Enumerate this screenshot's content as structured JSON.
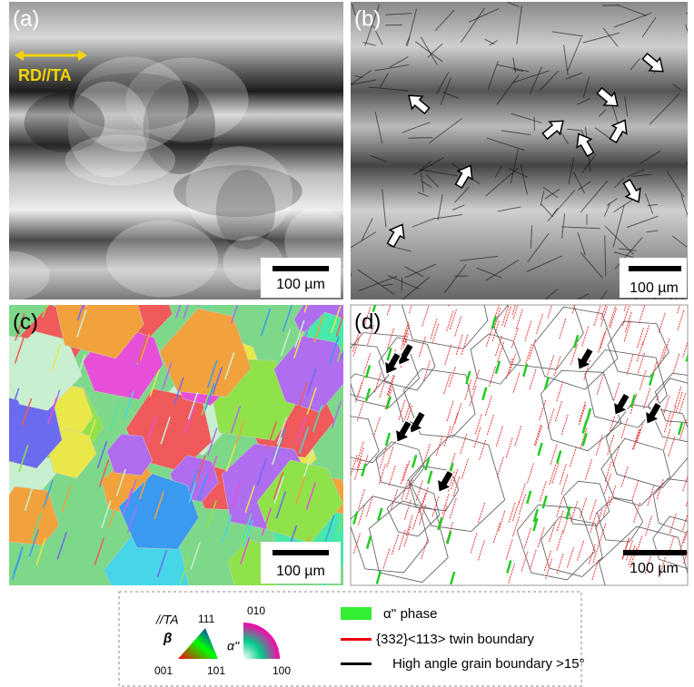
{
  "panels": [
    {
      "label": "(a)",
      "scale_bar": "100 µm",
      "annotation": "RD//TA"
    },
    {
      "label": "(b)",
      "scale_bar": "100 µm"
    },
    {
      "label": "(c)",
      "scale_bar": "100 µm"
    },
    {
      "label": "(d)",
      "scale_bar": "100 µm"
    }
  ],
  "legend": {
    "ipf_beta": {
      "direction": "//TA",
      "phase": "β",
      "top": "111",
      "left": "001",
      "right": "101"
    },
    "ipf_alpha": {
      "phase": "α''",
      "top": "010",
      "right": "100"
    },
    "items": [
      "α'' phase",
      "{332}<113> twin boundary",
      "High angle grain boundary >15°"
    ]
  }
}
